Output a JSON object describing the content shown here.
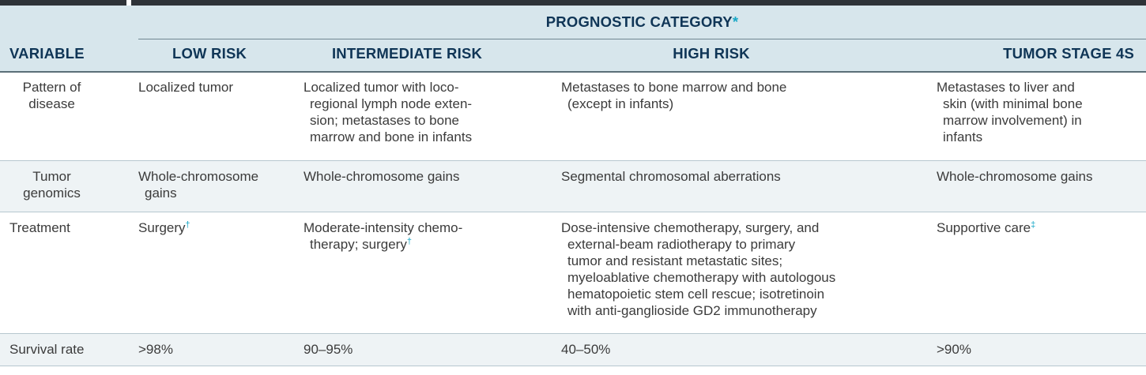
{
  "header": {
    "category_label": "PROGNOSTIC CATEGORY",
    "category_mark": "*",
    "columns": {
      "variable": "VARIABLE",
      "low": "LOW RISK",
      "intermediate": "INTERMEDIATE RISK",
      "high": "HIGH RISK",
      "stage4s": "TUMOR STAGE 4S"
    }
  },
  "rows": {
    "pattern": {
      "label_line1": "Pattern of",
      "label_line2": "disease",
      "low": "Localized tumor",
      "intermediate_line1": "Localized tumor with loco-",
      "intermediate_line2": "regional lymph node exten-",
      "intermediate_line3": "sion; metastases to bone",
      "intermediate_line4": "marrow and bone in infants",
      "high_line1": "Metastases to bone marrow and bone",
      "high_line2": "(except in infants)",
      "stage4s_line1": "Metastases to liver and",
      "stage4s_line2": "skin (with minimal bone",
      "stage4s_line3": "marrow involvement) in",
      "stage4s_line4": "infants"
    },
    "genomics": {
      "label_line1": "Tumor",
      "label_line2": "genomics",
      "low_line1": "Whole-chromosome",
      "low_line2": "gains",
      "intermediate": "Whole-chromosome gains",
      "high": "Segmental chromosomal aberrations",
      "stage4s": "Whole-chromosome gains"
    },
    "treatment": {
      "label": "Treatment",
      "low": "Surgery",
      "low_mark": "†",
      "intermediate_line1": "Moderate-intensity chemo-",
      "intermediate_line2": "therapy; surgery",
      "intermediate_mark": "†",
      "high_line1": "Dose-intensive chemotherapy, surgery, and",
      "high_line2": "external-beam radiotherapy to primary",
      "high_line3": "tumor and resistant metastatic sites;",
      "high_line4": "myeloablative chemotherapy with autologous",
      "high_line5": "hematopoietic stem cell rescue; isotretinoin",
      "high_line6": "with anti-ganglioside GD2 immunotherapy",
      "stage4s": "Supportive care",
      "stage4s_mark": "‡"
    },
    "survival": {
      "label": "Survival rate",
      "low": ">98%",
      "intermediate": "90–95%",
      "high": "40–50%",
      "stage4s": ">90%"
    }
  },
  "colors": {
    "header_bg": "#d7e6ec",
    "header_text": "#0f3556",
    "accent_mark": "#19a8c7",
    "row_shade": "#eef3f5"
  }
}
